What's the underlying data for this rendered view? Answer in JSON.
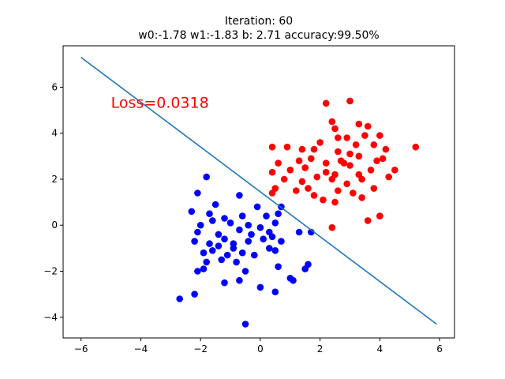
{
  "chart_data": {
    "type": "scatter",
    "title": "Iteration: 60",
    "subtitle": "w0:-1.78 w1:-1.83 b: 2.71 accuracy:99.50%",
    "xlabel": "",
    "ylabel": "",
    "xlim": [
      -6.6,
      6.5
    ],
    "ylim": [
      -4.9,
      7.8
    ],
    "xticks": [
      -6,
      -4,
      -2,
      0,
      2,
      4,
      6
    ],
    "yticks": [
      -4,
      -2,
      0,
      2,
      4,
      6
    ],
    "grid": false,
    "annotation": {
      "text": "Loss=0.0318",
      "x": -5.0,
      "y": 5.1,
      "color": "#ff0000"
    },
    "series": [
      {
        "kind": "points",
        "color": "#0000ff",
        "points": [
          [
            -2.1,
            1.4
          ],
          [
            -1.8,
            2.1
          ],
          [
            -0.7,
            1.3
          ],
          [
            -1.5,
            0.9
          ],
          [
            -0.1,
            0.8
          ],
          [
            0.7,
            0.8
          ],
          [
            -2.3,
            0.6
          ],
          [
            -1.7,
            0.5
          ],
          [
            -0.6,
            0.4
          ],
          [
            0.2,
            0.4
          ],
          [
            0.6,
            0.5
          ],
          [
            -1.2,
            0.3
          ],
          [
            -2.0,
            0.0
          ],
          [
            -1.0,
            0.1
          ],
          [
            0.0,
            -0.1
          ],
          [
            0.5,
            0.1
          ],
          [
            -2.1,
            -0.3
          ],
          [
            -1.4,
            -0.4
          ],
          [
            -0.7,
            -0.2
          ],
          [
            -0.3,
            -0.4
          ],
          [
            0.3,
            -0.3
          ],
          [
            1.3,
            -0.3
          ],
          [
            1.7,
            -0.3
          ],
          [
            -2.2,
            -0.7
          ],
          [
            -1.7,
            -0.8
          ],
          [
            -1.2,
            -0.6
          ],
          [
            -0.9,
            -0.8
          ],
          [
            -0.4,
            -0.7
          ],
          [
            0.1,
            -0.6
          ],
          [
            0.7,
            -0.7
          ],
          [
            -1.9,
            -1.2
          ],
          [
            -1.6,
            -1.1
          ],
          [
            -1.1,
            -1.3
          ],
          [
            -0.6,
            -1.2
          ],
          [
            -0.2,
            -1.3
          ],
          [
            0.3,
            -1.0
          ],
          [
            0.5,
            -1.1
          ],
          [
            -1.8,
            -1.6
          ],
          [
            -1.3,
            -1.5
          ],
          [
            -0.8,
            -1.6
          ],
          [
            -2.1,
            -2.0
          ],
          [
            -1.9,
            -1.9
          ],
          [
            -0.5,
            -2.0
          ],
          [
            0.6,
            -1.8
          ],
          [
            1.5,
            -1.9
          ],
          [
            1.6,
            -1.7
          ],
          [
            -1.2,
            -2.5
          ],
          [
            -0.7,
            -2.4
          ],
          [
            0.0,
            -2.7
          ],
          [
            1.0,
            -2.3
          ],
          [
            1.1,
            -2.4
          ],
          [
            0.5,
            -2.9
          ],
          [
            -2.2,
            -3.0
          ],
          [
            -2.7,
            -3.2
          ],
          [
            -0.5,
            -4.3
          ],
          [
            -1.6,
            0.2
          ],
          [
            -0.4,
            0.0
          ],
          [
            0.4,
            -0.5
          ],
          [
            -0.9,
            -1.0
          ],
          [
            -1.4,
            -0.9
          ]
        ]
      },
      {
        "kind": "points",
        "color": "#ff0000",
        "points": [
          [
            2.2,
            5.3
          ],
          [
            3.0,
            5.4
          ],
          [
            2.4,
            4.5
          ],
          [
            3.3,
            4.4
          ],
          [
            2.5,
            4.2
          ],
          [
            3.6,
            4.3
          ],
          [
            2.0,
            3.6
          ],
          [
            2.6,
            3.8
          ],
          [
            2.9,
            3.8
          ],
          [
            3.5,
            3.9
          ],
          [
            4.0,
            3.9
          ],
          [
            0.4,
            3.4
          ],
          [
            0.9,
            3.4
          ],
          [
            1.4,
            3.3
          ],
          [
            1.8,
            3.3
          ],
          [
            2.6,
            3.2
          ],
          [
            3.2,
            3.5
          ],
          [
            3.8,
            3.5
          ],
          [
            4.2,
            3.3
          ],
          [
            5.2,
            3.4
          ],
          [
            0.6,
            2.7
          ],
          [
            1.3,
            2.8
          ],
          [
            1.7,
            2.9
          ],
          [
            2.8,
            2.7
          ],
          [
            3.3,
            3.0
          ],
          [
            3.9,
            2.8
          ],
          [
            4.1,
            2.9
          ],
          [
            0.4,
            2.3
          ],
          [
            1.0,
            2.4
          ],
          [
            1.5,
            2.5
          ],
          [
            2.2,
            2.3
          ],
          [
            2.5,
            2.2
          ],
          [
            3.0,
            2.6
          ],
          [
            3.7,
            2.4
          ],
          [
            4.5,
            2.4
          ],
          [
            0.8,
            2.0
          ],
          [
            1.4,
            1.9
          ],
          [
            1.9,
            2.1
          ],
          [
            2.4,
            2.0
          ],
          [
            2.9,
            1.8
          ],
          [
            3.4,
            2.0
          ],
          [
            4.3,
            2.1
          ],
          [
            0.5,
            1.6
          ],
          [
            1.6,
            1.6
          ],
          [
            2.6,
            1.5
          ],
          [
            3.1,
            1.4
          ],
          [
            3.8,
            1.6
          ],
          [
            2.1,
            1.1
          ],
          [
            2.5,
            1.0
          ],
          [
            3.4,
            1.2
          ],
          [
            1.8,
            1.3
          ],
          [
            3.6,
            0.2
          ],
          [
            4.0,
            0.4
          ],
          [
            2.4,
            -0.1
          ],
          [
            0.4,
            1.4
          ],
          [
            2.7,
            2.8
          ],
          [
            3.3,
            2.2
          ],
          [
            2.2,
            2.7
          ],
          [
            3.0,
            3.1
          ],
          [
            1.2,
            1.5
          ]
        ]
      },
      {
        "kind": "line",
        "color": "#1f77b4",
        "points": [
          [
            -6.0,
            7.3
          ],
          [
            5.9,
            -4.3
          ]
        ]
      }
    ]
  }
}
